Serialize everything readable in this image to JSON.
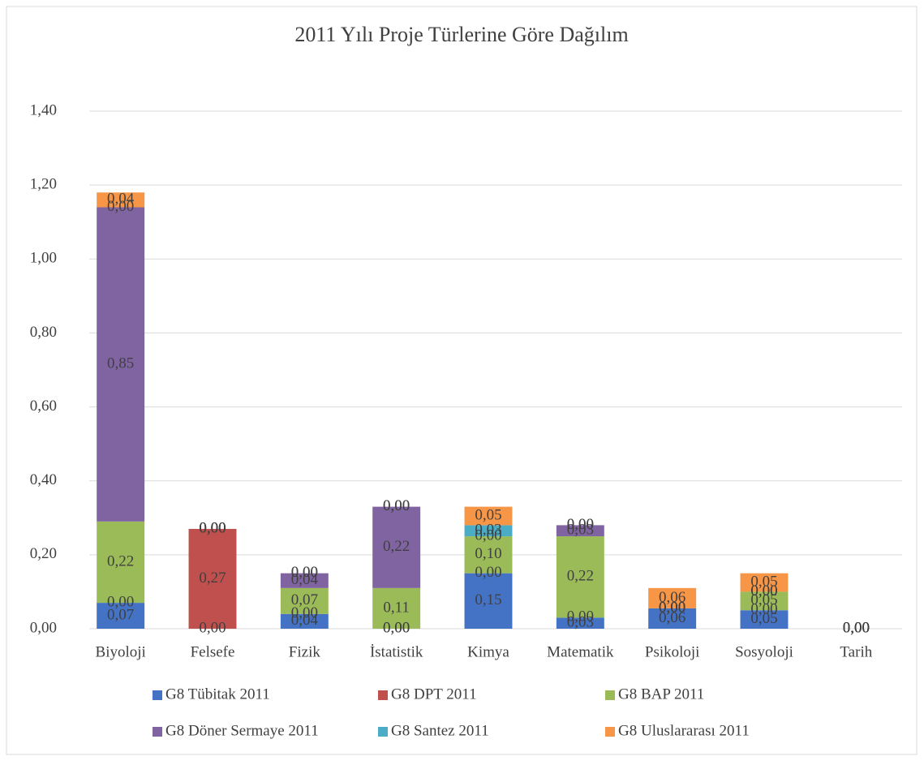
{
  "chart_data": {
    "type": "stacked_bar",
    "title": "2011 Yılı Proje Türlerine Göre Dağılım",
    "categories": [
      "Biyoloji",
      "Felsefe",
      "Fizik",
      "İstatistik",
      "Kimya",
      "Matematik",
      "Psikoloji",
      "Sosyoloji",
      "Tarih"
    ],
    "series": [
      {
        "name": "G8 Tübitak 2011",
        "color": "#4472c4",
        "values": [
          0.07,
          0,
          0.04,
          0,
          0.15,
          0.03,
          0.055,
          0.05,
          0
        ],
        "value_labels": [
          "0,07",
          "0,00",
          "0,04",
          "0,00",
          "0,15",
          "0,03",
          "0,06",
          "0,05",
          "0,00"
        ]
      },
      {
        "name": "G8 DPT 2011",
        "color": "#c0504d",
        "values": [
          0,
          0.27,
          0,
          0,
          0,
          0,
          0,
          0,
          0
        ],
        "value_labels": [
          "0,00",
          "0,27",
          "0,00",
          "0,00",
          "0,00",
          "0,00",
          "0,00",
          "0,00",
          "0,00"
        ]
      },
      {
        "name": "G8 BAP 2011",
        "color": "#9bbb59",
        "values": [
          0.22,
          0,
          0.07,
          0.11,
          0.1,
          0.22,
          0,
          0.05,
          0
        ],
        "value_labels": [
          "0,22",
          "0,00",
          "0,07",
          "0,11",
          "0,10",
          "0,22",
          "0,00",
          "0,05",
          "0,00"
        ]
      },
      {
        "name": "G8 Döner Sermaye 2011",
        "color": "#8064a2",
        "values": [
          0.85,
          0,
          0.04,
          0.22,
          0,
          0.03,
          0,
          0,
          0
        ],
        "value_labels": [
          "0,85",
          "0,00",
          "0,04",
          "0,22",
          "0,00",
          "0,03",
          "0,00",
          "0,00",
          "0,00"
        ]
      },
      {
        "name": "G8 Santez 2011",
        "color": "#4bacc6",
        "values": [
          0,
          0,
          0,
          0,
          0.03,
          0,
          0,
          0,
          0
        ],
        "value_labels": [
          "0,00",
          "0,00",
          "0,00",
          "0,00",
          "0,03",
          "0,00",
          "0,00",
          "0,00",
          "0,00"
        ]
      },
      {
        "name": "G8 Uluslararası 2011",
        "color": "#f79646",
        "values": [
          0.04,
          0,
          0,
          0,
          0.05,
          0,
          0.055,
          0.05,
          0
        ],
        "value_labels": [
          "0,04",
          "0,00",
          "0,00",
          "0,00",
          "0,05",
          "0,00",
          "0,06",
          "0,05",
          "0,00"
        ]
      }
    ],
    "ylim": [
      0,
      1.4
    ],
    "yticks": [
      {
        "value": 0,
        "label": "0,00"
      },
      {
        "value": 0.2,
        "label": "0,20"
      },
      {
        "value": 0.4,
        "label": "0,40"
      },
      {
        "value": 0.6,
        "label": "0,60"
      },
      {
        "value": 0.8,
        "label": "0,80"
      },
      {
        "value": 1.0,
        "label": "1,00"
      },
      {
        "value": 1.2,
        "label": "1,20"
      },
      {
        "value": 1.4,
        "label": "1,40"
      }
    ],
    "grid": true
  }
}
